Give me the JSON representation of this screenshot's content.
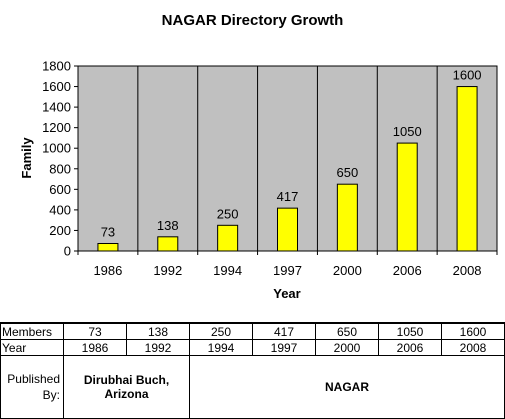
{
  "chart_data": {
    "type": "bar",
    "title": "NAGAR Directory Growth",
    "xlabel": "Year",
    "ylabel": "Family",
    "categories": [
      "1986",
      "1992",
      "1994",
      "1997",
      "2000",
      "2006",
      "2008"
    ],
    "values": [
      73,
      138,
      250,
      417,
      650,
      1050,
      1600
    ],
    "ylim": [
      0,
      1800
    ],
    "yticks": [
      0,
      200,
      400,
      600,
      800,
      1000,
      1200,
      1400,
      1600,
      1800
    ],
    "data_labels": true,
    "vertical_gridlines": true,
    "horizontal_gridlines": false,
    "legend": "none",
    "bar_color": "#ffff00",
    "plot_background": "#c0c0c0"
  },
  "table": {
    "members_label": "Members",
    "year_label": "Year",
    "published_label_line1": "Published",
    "published_label_line2": "By:",
    "members": [
      "73",
      "138",
      "250",
      "417",
      "650",
      "1050",
      "1600"
    ],
    "years": [
      "1986",
      "1992",
      "1994",
      "1997",
      "2000",
      "2006",
      "2008"
    ],
    "publisher_1_line1": "Dirubhai Buch,",
    "publisher_1_line2": "Arizona",
    "publisher_2": "NAGAR"
  }
}
